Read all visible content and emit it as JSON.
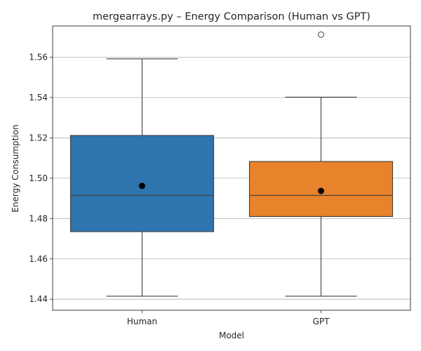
{
  "chart_data": {
    "type": "box",
    "title": "mergearrays.py – Energy Comparison (Human vs GPT)",
    "xlabel": "Model",
    "ylabel": "Energy Consumption",
    "ylim": [
      1.4345,
      1.5755
    ],
    "yticks": [
      1.44,
      1.46,
      1.48,
      1.5,
      1.52,
      1.54,
      1.56
    ],
    "ytick_labels": [
      "1.44",
      "1.46",
      "1.48",
      "1.50",
      "1.52",
      "1.54",
      "1.56"
    ],
    "grid": "horizontal",
    "categories": [
      "Human",
      "GPT"
    ],
    "series": [
      {
        "category": "Human",
        "color": "#2e75b0",
        "whisker_low": 1.4415,
        "q1": 1.4735,
        "median": 1.4915,
        "q3": 1.5212,
        "whisker_high": 1.5592,
        "mean": 1.4962,
        "outliers": []
      },
      {
        "category": "GPT",
        "color": "#e8822b",
        "whisker_low": 1.4415,
        "q1": 1.481,
        "median": 1.4915,
        "q3": 1.5083,
        "whisker_high": 1.5402,
        "mean": 1.4937,
        "outliers": [
          1.5712
        ]
      }
    ]
  }
}
